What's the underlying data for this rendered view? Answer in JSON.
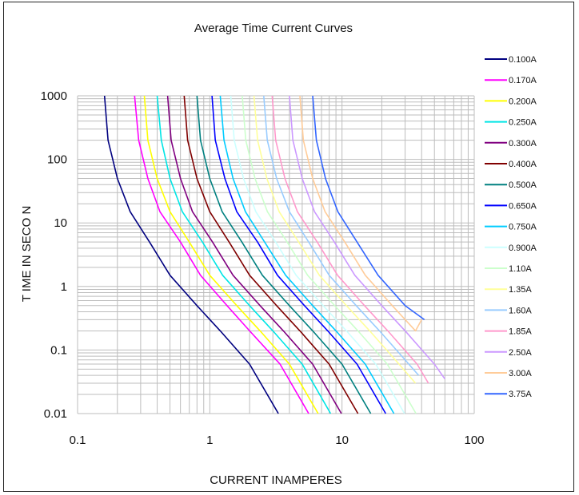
{
  "chart_data": {
    "type": "line",
    "title": "Average Time Current Curves",
    "xlabel": "CURRENT INAMPERES",
    "ylabel": "T IME IN SECO N",
    "x_scale": "log",
    "y_scale": "log",
    "xlim": [
      0.1,
      100
    ],
    "ylim": [
      0.01,
      1000
    ],
    "x_ticks": [
      "0.1",
      "1",
      "10",
      "100"
    ],
    "y_ticks": [
      "0.01",
      "0.1",
      "1",
      "10",
      "100",
      "1000"
    ],
    "grid": true,
    "legend_position": "right",
    "series": [
      {
        "name": "0.100A",
        "color": "#000080",
        "points": [
          [
            0.16,
            1000
          ],
          [
            0.17,
            200
          ],
          [
            0.2,
            50
          ],
          [
            0.25,
            15
          ],
          [
            0.35,
            5
          ],
          [
            0.5,
            1.5
          ],
          [
            0.8,
            0.5
          ],
          [
            1.2,
            0.2
          ],
          [
            2,
            0.06
          ],
          [
            3.3,
            0.01
          ]
        ]
      },
      {
        "name": "0.170A",
        "color": "#ff00ff",
        "points": [
          [
            0.27,
            1000
          ],
          [
            0.29,
            200
          ],
          [
            0.34,
            50
          ],
          [
            0.42,
            15
          ],
          [
            0.6,
            5
          ],
          [
            0.85,
            1.5
          ],
          [
            1.35,
            0.5
          ],
          [
            2,
            0.2
          ],
          [
            3.4,
            0.06
          ],
          [
            5.6,
            0.01
          ]
        ]
      },
      {
        "name": "0.200A",
        "color": "#ffff00",
        "points": [
          [
            0.32,
            1000
          ],
          [
            0.34,
            200
          ],
          [
            0.4,
            50
          ],
          [
            0.5,
            15
          ],
          [
            0.7,
            5
          ],
          [
            1,
            1.5
          ],
          [
            1.6,
            0.5
          ],
          [
            2.4,
            0.2
          ],
          [
            4,
            0.06
          ],
          [
            6.6,
            0.01
          ]
        ]
      },
      {
        "name": "0.250A",
        "color": "#00e5e5",
        "points": [
          [
            0.4,
            1000
          ],
          [
            0.43,
            200
          ],
          [
            0.5,
            50
          ],
          [
            0.62,
            15
          ],
          [
            0.88,
            5
          ],
          [
            1.25,
            1.5
          ],
          [
            2,
            0.5
          ],
          [
            3,
            0.2
          ],
          [
            5,
            0.06
          ],
          [
            8.2,
            0.01
          ]
        ]
      },
      {
        "name": "0.300A",
        "color": "#800080",
        "points": [
          [
            0.48,
            1000
          ],
          [
            0.51,
            200
          ],
          [
            0.6,
            50
          ],
          [
            0.74,
            15
          ],
          [
            1.05,
            5
          ],
          [
            1.5,
            1.5
          ],
          [
            2.4,
            0.5
          ],
          [
            3.6,
            0.2
          ],
          [
            6,
            0.06
          ],
          [
            9.9,
            0.01
          ]
        ]
      },
      {
        "name": "0.400A",
        "color": "#800000",
        "points": [
          [
            0.64,
            1000
          ],
          [
            0.68,
            200
          ],
          [
            0.8,
            50
          ],
          [
            1,
            15
          ],
          [
            1.4,
            5
          ],
          [
            2,
            1.5
          ],
          [
            3.2,
            0.5
          ],
          [
            4.8,
            0.2
          ],
          [
            8,
            0.06
          ],
          [
            13.2,
            0.01
          ]
        ]
      },
      {
        "name": "0.500A",
        "color": "#008080",
        "points": [
          [
            0.8,
            1000
          ],
          [
            0.85,
            200
          ],
          [
            1,
            50
          ],
          [
            1.24,
            15
          ],
          [
            1.75,
            5
          ],
          [
            2.5,
            1.5
          ],
          [
            4,
            0.5
          ],
          [
            6,
            0.2
          ],
          [
            10,
            0.06
          ],
          [
            16.5,
            0.01
          ]
        ]
      },
      {
        "name": "0.650A",
        "color": "#0000ff",
        "points": [
          [
            1.04,
            1000
          ],
          [
            1.1,
            200
          ],
          [
            1.3,
            50
          ],
          [
            1.6,
            15
          ],
          [
            2.3,
            5
          ],
          [
            3.25,
            1.5
          ],
          [
            5.2,
            0.5
          ],
          [
            7.8,
            0.2
          ],
          [
            13,
            0.06
          ],
          [
            21.4,
            0.01
          ]
        ]
      },
      {
        "name": "0.750A",
        "color": "#00ccff",
        "points": [
          [
            1.2,
            1000
          ],
          [
            1.28,
            200
          ],
          [
            1.5,
            50
          ],
          [
            1.86,
            15
          ],
          [
            2.6,
            5
          ],
          [
            3.75,
            1.5
          ],
          [
            6,
            0.5
          ],
          [
            9,
            0.2
          ],
          [
            15,
            0.06
          ],
          [
            24.7,
            0.01
          ]
        ]
      },
      {
        "name": "0.900A",
        "color": "#ccffff",
        "points": [
          [
            1.44,
            1000
          ],
          [
            1.53,
            200
          ],
          [
            1.8,
            50
          ],
          [
            2.23,
            15
          ],
          [
            3.15,
            5
          ],
          [
            4.5,
            1.5
          ],
          [
            7.2,
            0.5
          ],
          [
            10.8,
            0.2
          ],
          [
            18,
            0.06
          ],
          [
            29.7,
            0.01
          ]
        ]
      },
      {
        "name": "1.10A",
        "color": "#ccffcc",
        "points": [
          [
            1.76,
            1000
          ],
          [
            1.87,
            200
          ],
          [
            2.2,
            50
          ],
          [
            2.73,
            15
          ],
          [
            3.85,
            5
          ],
          [
            5.5,
            1.5
          ],
          [
            8.8,
            0.5
          ],
          [
            13.2,
            0.2
          ],
          [
            22,
            0.06
          ],
          [
            36.3,
            0.01
          ]
        ]
      },
      {
        "name": "1.35A",
        "color": "#ffff99",
        "points": [
          [
            2.16,
            1000
          ],
          [
            2.3,
            200
          ],
          [
            2.7,
            50
          ],
          [
            3.35,
            15
          ],
          [
            4.7,
            5
          ],
          [
            6.75,
            1.5
          ],
          [
            10.8,
            0.5
          ],
          [
            16.2,
            0.2
          ],
          [
            27,
            0.06
          ],
          [
            36,
            0.03
          ]
        ]
      },
      {
        "name": "1.60A",
        "color": "#99ccff",
        "points": [
          [
            2.56,
            1000
          ],
          [
            2.72,
            200
          ],
          [
            3.2,
            50
          ],
          [
            4,
            15
          ],
          [
            5.6,
            5
          ],
          [
            8,
            1.5
          ],
          [
            12.8,
            0.5
          ],
          [
            19.2,
            0.2
          ],
          [
            32,
            0.06
          ],
          [
            38,
            0.04
          ]
        ]
      },
      {
        "name": "1.85A",
        "color": "#ff99cc",
        "points": [
          [
            2.96,
            1000
          ],
          [
            3.15,
            200
          ],
          [
            3.7,
            50
          ],
          [
            4.6,
            15
          ],
          [
            6.5,
            5
          ],
          [
            9.25,
            1.5
          ],
          [
            14.8,
            0.5
          ],
          [
            22.2,
            0.2
          ],
          [
            37,
            0.06
          ],
          [
            45,
            0.03
          ]
        ]
      },
      {
        "name": "2.50A",
        "color": "#cc99ff",
        "points": [
          [
            4,
            1000
          ],
          [
            4.25,
            200
          ],
          [
            5,
            50
          ],
          [
            6.2,
            15
          ],
          [
            8.75,
            5
          ],
          [
            12.5,
            1.5
          ],
          [
            20,
            0.5
          ],
          [
            30,
            0.2
          ],
          [
            50,
            0.06
          ],
          [
            60,
            0.035
          ]
        ]
      },
      {
        "name": "3.00A",
        "color": "#ffcc99",
        "points": [
          [
            4.8,
            1000
          ],
          [
            5.1,
            200
          ],
          [
            6,
            50
          ],
          [
            7.45,
            15
          ],
          [
            10.5,
            5
          ],
          [
            15,
            1.5
          ],
          [
            24,
            0.5
          ],
          [
            36,
            0.2
          ],
          [
            40,
            0.3
          ]
        ]
      },
      {
        "name": "3.75A",
        "color": "#3366ff",
        "points": [
          [
            6,
            1000
          ],
          [
            6.4,
            200
          ],
          [
            7.5,
            50
          ],
          [
            9.3,
            15
          ],
          [
            13,
            5
          ],
          [
            18.75,
            1.5
          ],
          [
            30,
            0.5
          ],
          [
            42,
            0.3
          ]
        ]
      }
    ]
  }
}
